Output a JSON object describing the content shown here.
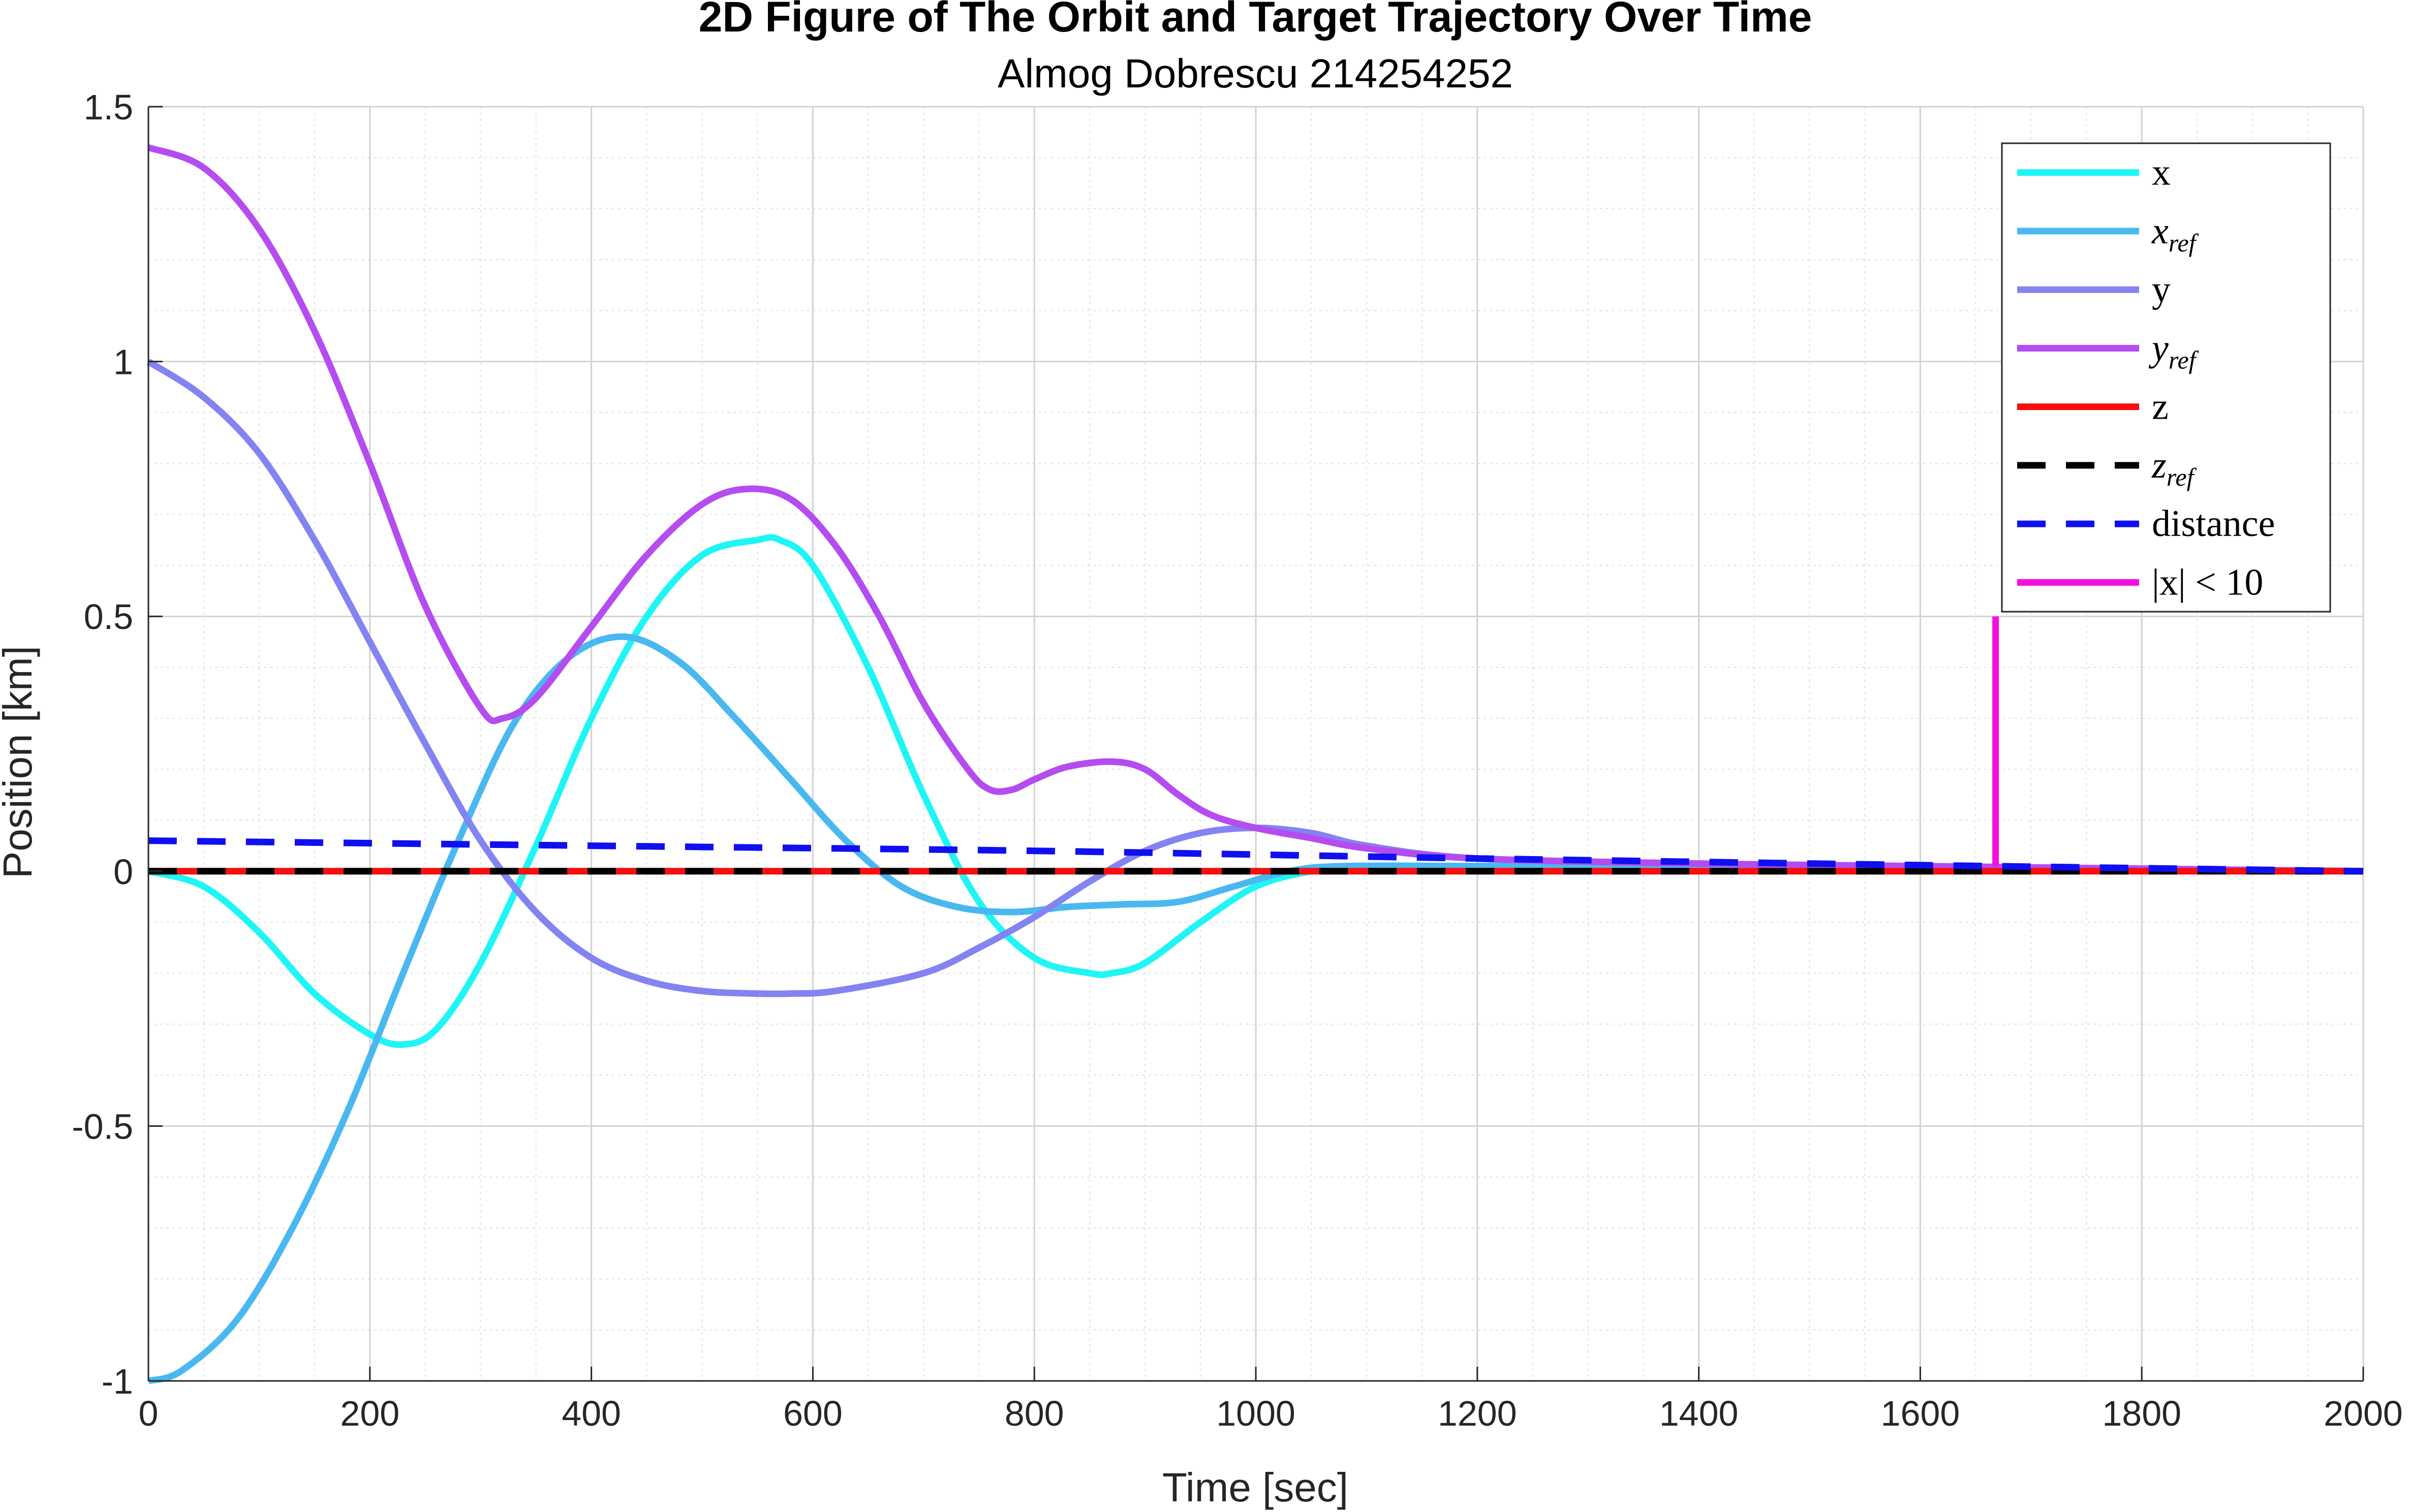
{
  "chart_data": {
    "type": "line",
    "title": "2D Figure of The Orbit and Target Trajectory Over Time",
    "subtitle": "Almog Dobrescu 214254252",
    "xlabel": "Time [sec]",
    "ylabel": "Position [km]",
    "xlim": [
      0,
      2000
    ],
    "ylim": [
      -1,
      1.5
    ],
    "xticks": [
      0,
      200,
      400,
      600,
      800,
      1000,
      1200,
      1400,
      1600,
      1800,
      2000
    ],
    "xtick_labels": [
      "0",
      "200",
      "400",
      "600",
      "800",
      "1000",
      "1200",
      "1400",
      "1600",
      "1800",
      "2000"
    ],
    "yticks": [
      -1,
      -0.5,
      0,
      0.5,
      1,
      1.5
    ],
    "ytick_labels": [
      "-1",
      "-0.5",
      "0",
      "0.5",
      "1",
      "1.5"
    ],
    "grid": true,
    "minor_grid": true,
    "legend_position": "top-right",
    "series": [
      {
        "name": "x",
        "color": "#1ff5f5",
        "dash": "solid",
        "x": [
          0,
          50,
          100,
          150,
          200,
          230,
          260,
          300,
          350,
          400,
          450,
          500,
          550,
          570,
          600,
          650,
          700,
          750,
          800,
          850,
          870,
          900,
          950,
          1000,
          1050,
          1100,
          1200,
          1400,
          1600,
          2000
        ],
        "y": [
          0,
          -0.03,
          -0.12,
          -0.24,
          -0.32,
          -0.34,
          -0.31,
          -0.18,
          0.05,
          0.3,
          0.5,
          0.62,
          0.65,
          0.65,
          0.6,
          0.4,
          0.15,
          -0.06,
          -0.17,
          -0.2,
          -0.2,
          -0.18,
          -0.1,
          -0.03,
          0.0,
          0.01,
          0.01,
          0.01,
          0.005,
          0.0
        ]
      },
      {
        "name": "x_ref",
        "color": "#4ab8f0",
        "dash": "solid",
        "x": [
          0,
          30,
          80,
          130,
          180,
          230,
          280,
          330,
          380,
          430,
          480,
          530,
          580,
          630,
          680,
          730,
          780,
          830,
          880,
          930,
          980,
          1030,
          1080,
          1200,
          1400,
          1600,
          2000
        ],
        "y": [
          -1,
          -0.98,
          -0.88,
          -0.7,
          -0.47,
          -0.2,
          0.06,
          0.29,
          0.42,
          0.46,
          0.41,
          0.3,
          0.18,
          0.06,
          -0.03,
          -0.07,
          -0.08,
          -0.07,
          -0.065,
          -0.06,
          -0.03,
          0.0,
          0.01,
          0.01,
          0.01,
          0.005,
          0.0
        ]
      },
      {
        "name": "y",
        "color": "#8383f1",
        "dash": "solid",
        "x": [
          0,
          50,
          100,
          150,
          200,
          250,
          300,
          350,
          400,
          450,
          500,
          550,
          580,
          620,
          700,
          750,
          800,
          850,
          900,
          950,
          1000,
          1050,
          1100,
          1200,
          1400,
          1600,
          2000
        ],
        "y": [
          1,
          0.93,
          0.82,
          0.65,
          0.45,
          0.25,
          0.06,
          -0.08,
          -0.17,
          -0.215,
          -0.235,
          -0.24,
          -0.24,
          -0.235,
          -0.2,
          -0.15,
          -0.09,
          -0.02,
          0.04,
          0.075,
          0.085,
          0.075,
          0.05,
          0.025,
          0.015,
          0.01,
          0.0
        ]
      },
      {
        "name": "y_ref",
        "color": "#b44cf0",
        "dash": "solid",
        "x": [
          0,
          50,
          100,
          150,
          200,
          250,
          300,
          320,
          350,
          400,
          450,
          500,
          540,
          580,
          620,
          660,
          700,
          740,
          760,
          780,
          800,
          830,
          870,
          900,
          930,
          960,
          1000,
          1050,
          1100,
          1200,
          1400,
          1600,
          2000
        ],
        "y": [
          1.42,
          1.38,
          1.26,
          1.06,
          0.8,
          0.52,
          0.32,
          0.3,
          0.34,
          0.48,
          0.62,
          0.72,
          0.75,
          0.73,
          0.64,
          0.5,
          0.33,
          0.2,
          0.16,
          0.16,
          0.18,
          0.205,
          0.215,
          0.2,
          0.15,
          0.11,
          0.085,
          0.065,
          0.045,
          0.025,
          0.015,
          0.01,
          0.0
        ]
      },
      {
        "name": "z",
        "color": "#f50f0f",
        "dash": "solid",
        "x": [
          0,
          2000
        ],
        "y": [
          0,
          0
        ]
      },
      {
        "name": "z_ref",
        "color": "#000000",
        "dash": "dashed",
        "x": [
          0,
          2000
        ],
        "y": [
          0,
          0
        ]
      },
      {
        "name": "distance",
        "color": "#0f0ff0",
        "dash": "dashed",
        "x": [
          0,
          400,
          800,
          1200,
          1600,
          2000
        ],
        "y": [
          0.06,
          0.05,
          0.04,
          0.025,
          0.012,
          0.0
        ]
      },
      {
        "name": "|x| < 10",
        "color": "#f50fde",
        "dash": "solid",
        "x": [
          1668,
          1668
        ],
        "y": [
          0.01,
          0.5
        ]
      }
    ],
    "legend": [
      {
        "main": "x",
        "sub": "",
        "italic": false
      },
      {
        "main": "x",
        "sub": "ref",
        "italic": true
      },
      {
        "main": "y",
        "sub": "",
        "italic": false
      },
      {
        "main": "y",
        "sub": "ref",
        "italic": true
      },
      {
        "main": "z",
        "sub": "",
        "italic": false
      },
      {
        "main": "z",
        "sub": "ref",
        "italic": true
      },
      {
        "main": "distance",
        "sub": "",
        "italic": false
      },
      {
        "main": "|x| < 10",
        "sub": "",
        "italic": false
      }
    ]
  }
}
